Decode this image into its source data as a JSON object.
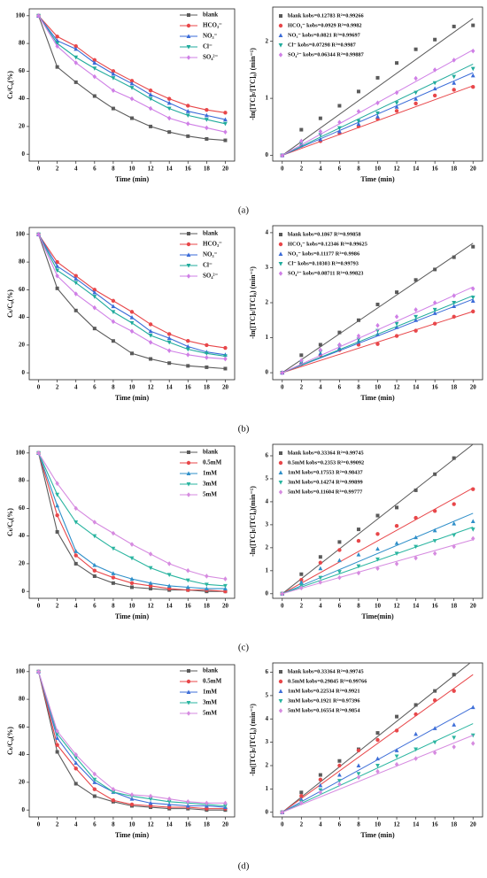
{
  "panel_labels": [
    "(a)",
    "(b)",
    "(c)",
    "(d)"
  ],
  "chart_data": [
    {
      "type": "line",
      "xlabel": "Time (min)",
      "ylabel": "Cₜ/C₀(%)",
      "x": [
        0,
        2,
        4,
        6,
        8,
        10,
        12,
        14,
        16,
        18,
        20
      ],
      "xlim": [
        -1,
        21
      ],
      "ylim": [
        -5,
        105
      ],
      "xticks": [
        0,
        2,
        4,
        6,
        8,
        10,
        12,
        14,
        16,
        18,
        20
      ],
      "yticks": [
        0,
        20,
        40,
        60,
        80,
        100
      ],
      "series": [
        {
          "name": "blank",
          "color": "#5a5a5a",
          "marker": "square",
          "values": [
            100,
            63,
            52,
            42,
            33,
            26,
            20,
            16,
            13,
            11,
            10
          ]
        },
        {
          "name": "HCO₃⁻",
          "color": "#e8474a",
          "marker": "circle",
          "values": [
            100,
            85,
            78,
            68,
            60,
            53,
            46,
            40,
            35,
            32,
            30
          ]
        },
        {
          "name": "NO₃⁻",
          "color": "#3a6bd8",
          "marker": "triangle",
          "values": [
            100,
            82,
            76,
            66,
            58,
            51,
            43,
            37,
            31,
            28,
            25
          ]
        },
        {
          "name": "Cl⁻",
          "color": "#20ab9c",
          "marker": "down",
          "values": [
            100,
            80,
            70,
            62,
            55,
            48,
            40,
            33,
            28,
            25,
            22
          ]
        },
        {
          "name": "SO₄²⁻",
          "color": "#cf7fe6",
          "marker": "diamond",
          "values": [
            100,
            78,
            66,
            56,
            46,
            40,
            33,
            26,
            22,
            19,
            16
          ]
        }
      ]
    },
    {
      "type": "scatter",
      "xlabel": "Time (min)",
      "ylabel": "-ln([TC]ₜ/[TC]₀) (min⁻¹)",
      "x": [
        0,
        2,
        4,
        6,
        8,
        10,
        12,
        14,
        16,
        18,
        20
      ],
      "xlim": [
        -1,
        21
      ],
      "ylim": [
        -0.1,
        2.6
      ],
      "xticks": [
        0,
        2,
        4,
        6,
        8,
        10,
        12,
        14,
        16,
        18,
        20
      ],
      "yticks": [
        0,
        1,
        2
      ],
      "series": [
        {
          "name": "blank   kobs=0.12783 R²=0.99266",
          "color": "#5a5a5a",
          "marker": "square",
          "values": [
            0,
            0.45,
            0.65,
            0.87,
            1.12,
            1.36,
            1.62,
            1.86,
            2.03,
            2.26,
            2.28
          ],
          "fit": [
            0,
            2.4
          ]
        },
        {
          "name": "HCO₃⁻   kobs=0.0929 R²=0.9982",
          "color": "#e8474a",
          "marker": "circle",
          "values": [
            0,
            0.17,
            0.25,
            0.39,
            0.51,
            0.64,
            0.78,
            0.91,
            1.05,
            1.15,
            1.2
          ],
          "fit": [
            0,
            1.22
          ]
        },
        {
          "name": "NO₃⁻   kobs=0.0821 R²=0.99697",
          "color": "#3a6bd8",
          "marker": "triangle",
          "values": [
            0,
            0.2,
            0.28,
            0.42,
            0.55,
            0.68,
            0.85,
            0.99,
            1.17,
            1.27,
            1.4
          ],
          "fit": [
            0,
            1.45
          ]
        },
        {
          "name": "Cl⁻   kobs=0.07298 R²=0.9987",
          "color": "#20ab9c",
          "marker": "down",
          "values": [
            0,
            0.22,
            0.36,
            0.48,
            0.6,
            0.74,
            0.92,
            1.1,
            1.27,
            1.38,
            1.52
          ],
          "fit": [
            0,
            1.6
          ]
        },
        {
          "name": "SO₄²⁻   kobs=0.06344 R²=0.99887",
          "color": "#cf7fe6",
          "marker": "diamond",
          "values": [
            0,
            0.25,
            0.42,
            0.58,
            0.77,
            0.92,
            1.1,
            1.35,
            1.5,
            1.67,
            1.83
          ],
          "fit": [
            0,
            1.85
          ]
        }
      ]
    },
    {
      "type": "line",
      "xlabel": "Time (min)",
      "ylabel": "Cₜ/C₀(%)",
      "x": [
        0,
        2,
        4,
        6,
        8,
        10,
        12,
        14,
        16,
        18,
        20
      ],
      "xlim": [
        -1,
        21
      ],
      "ylim": [
        -5,
        105
      ],
      "xticks": [
        0,
        2,
        4,
        6,
        8,
        10,
        12,
        14,
        16,
        18,
        20
      ],
      "yticks": [
        0,
        20,
        40,
        60,
        80,
        100
      ],
      "series": [
        {
          "name": "blank",
          "color": "#5a5a5a",
          "marker": "square",
          "values": [
            100,
            61,
            45,
            32,
            23,
            14,
            10,
            7,
            5,
            4,
            3
          ]
        },
        {
          "name": "HCO₃⁻",
          "color": "#e8474a",
          "marker": "circle",
          "values": [
            100,
            80,
            70,
            60,
            52,
            44,
            35,
            28,
            23,
            20,
            18
          ]
        },
        {
          "name": "NO₃⁻",
          "color": "#3a6bd8",
          "marker": "triangle",
          "values": [
            100,
            77,
            68,
            58,
            48,
            40,
            30,
            25,
            19,
            15,
            13
          ]
        },
        {
          "name": "Cl⁻",
          "color": "#20ab9c",
          "marker": "down",
          "values": [
            100,
            74,
            65,
            55,
            44,
            36,
            27,
            22,
            17,
            14,
            12
          ]
        },
        {
          "name": "SO₄²⁻",
          "color": "#cf7fe6",
          "marker": "diamond",
          "values": [
            100,
            70,
            57,
            47,
            37,
            30,
            22,
            16,
            13,
            11,
            10
          ]
        }
      ]
    },
    {
      "type": "scatter",
      "xlabel": "Time (min)",
      "ylabel": "-ln([TC]ₜ/[TC]₀) (min⁻¹)",
      "x": [
        0,
        2,
        4,
        6,
        8,
        10,
        12,
        14,
        16,
        18,
        20
      ],
      "xlim": [
        -1,
        21
      ],
      "ylim": [
        -0.2,
        4.2
      ],
      "xticks": [
        0,
        2,
        4,
        6,
        8,
        10,
        12,
        14,
        16,
        18,
        20
      ],
      "yticks": [
        0,
        1,
        2,
        3,
        4
      ],
      "series": [
        {
          "name": "blank   kobs=0.1867   R²=0.99858",
          "color": "#5a5a5a",
          "marker": "square",
          "values": [
            0,
            0.5,
            0.8,
            1.15,
            1.5,
            1.95,
            2.3,
            2.65,
            2.95,
            3.3,
            3.6
          ],
          "fit": [
            0,
            3.7
          ]
        },
        {
          "name": "HCO₃⁻   kobs=0.12346  R²=0.99625",
          "color": "#e8474a",
          "marker": "circle",
          "values": [
            0,
            0.25,
            0.5,
            0.65,
            0.8,
            0.82,
            1.05,
            1.2,
            1.4,
            1.6,
            1.75
          ],
          "fit": [
            0,
            1.75
          ]
        },
        {
          "name": "NO₃⁻   kobs=0.11177  R²=0.9986",
          "color": "#3a6bd8",
          "marker": "triangle",
          "values": [
            0,
            0.3,
            0.55,
            0.7,
            0.9,
            1.1,
            1.3,
            1.5,
            1.7,
            1.9,
            2.05
          ],
          "fit": [
            0,
            2.1
          ]
        },
        {
          "name": "Cl⁻   kobs=0.10303  R²=0.99793",
          "color": "#20ab9c",
          "marker": "down",
          "values": [
            0,
            0.3,
            0.6,
            0.75,
            0.95,
            1.2,
            1.4,
            1.6,
            1.8,
            2.0,
            2.15
          ],
          "fit": [
            0,
            2.2
          ]
        },
        {
          "name": "SO₄²⁻   kobs=0.08711  R²=0.99823",
          "color": "#cf7fe6",
          "marker": "diamond",
          "values": [
            0,
            0.35,
            0.65,
            0.8,
            1.05,
            1.35,
            1.6,
            1.8,
            2.0,
            2.2,
            2.4
          ],
          "fit": [
            0,
            2.45
          ]
        }
      ]
    },
    {
      "type": "line",
      "xlabel": "Time (min)",
      "ylabel": "Cₜ/C₀(%)",
      "x": [
        0,
        2,
        4,
        6,
        8,
        10,
        12,
        14,
        16,
        18,
        20
      ],
      "xlim": [
        -1,
        21
      ],
      "ylim": [
        -5,
        105
      ],
      "xticks": [
        0,
        2,
        4,
        6,
        8,
        10,
        12,
        14,
        16,
        18,
        20
      ],
      "yticks": [
        0,
        20,
        40,
        60,
        80,
        100
      ],
      "series": [
        {
          "name": "blank",
          "color": "#5a5a5a",
          "marker": "square",
          "values": [
            100,
            43,
            20,
            11,
            6,
            3,
            2,
            1,
            1,
            0,
            0
          ]
        },
        {
          "name": "0.5mM",
          "color": "#e8474a",
          "marker": "circle",
          "values": [
            100,
            55,
            26,
            15,
            10,
            6,
            4,
            2,
            1,
            1,
            0
          ]
        },
        {
          "name": "1mM",
          "color": "#2f8fc9",
          "marker": "triangle",
          "values": [
            100,
            62,
            29,
            19,
            13,
            9,
            6,
            4,
            3,
            2,
            2
          ]
        },
        {
          "name": "3mM",
          "color": "#2ab5a0",
          "marker": "down",
          "values": [
            100,
            70,
            50,
            40,
            31,
            24,
            17,
            12,
            8,
            5,
            4
          ]
        },
        {
          "name": "5mM",
          "color": "#d68be0",
          "marker": "diamond",
          "values": [
            100,
            78,
            60,
            50,
            42,
            34,
            27,
            20,
            15,
            11,
            9
          ]
        }
      ]
    },
    {
      "type": "scatter",
      "xlabel": "Time(min)",
      "ylabel": "-ln([TC]ₜ/[TC]₀)(min⁻¹)",
      "x": [
        0,
        2,
        4,
        6,
        8,
        10,
        12,
        14,
        16,
        18,
        20
      ],
      "xlim": [
        -1,
        21
      ],
      "ylim": [
        -0.2,
        6.5
      ],
      "xticks": [
        0,
        2,
        4,
        6,
        8,
        10,
        12,
        14,
        16,
        18,
        20
      ],
      "yticks": [
        0,
        1,
        2,
        3,
        4,
        5,
        6
      ],
      "series": [
        {
          "name": "blank   kobs=0.33364  R²=0.99745",
          "color": "#5a5a5a",
          "marker": "square",
          "values": [
            0,
            0.85,
            1.6,
            2.25,
            2.8,
            3.4,
            3.75,
            4.5,
            5.2,
            5.9,
            null
          ],
          "fit": [
            0,
            6.5
          ]
        },
        {
          "name": "0.5mM   kobs=0.2353   R²=0.99092",
          "color": "#e8474a",
          "marker": "circle",
          "values": [
            0,
            0.6,
            1.35,
            1.9,
            2.3,
            2.6,
            2.95,
            3.3,
            3.6,
            3.9,
            4.55
          ],
          "fit": [
            0,
            4.6
          ]
        },
        {
          "name": "1mM   kobs=0.17553  R²=0.98437",
          "color": "#2f8fc9",
          "marker": "triangle",
          "values": [
            0,
            0.5,
            1.1,
            1.45,
            1.7,
            1.95,
            2.2,
            2.45,
            2.75,
            3.05,
            3.15
          ],
          "fit": [
            0,
            3.5
          ]
        },
        {
          "name": "3mM   kobs=0.14274  R²=0.99899",
          "color": "#2ab5a0",
          "marker": "down",
          "values": [
            0,
            0.35,
            0.7,
            0.95,
            1.2,
            1.5,
            1.75,
            2.05,
            2.3,
            2.55,
            2.8
          ],
          "fit": [
            0,
            2.9
          ]
        },
        {
          "name": "5mM   kobs=0.11604  R²=0.99777",
          "color": "#d68be0",
          "marker": "diamond",
          "values": [
            0,
            0.25,
            0.5,
            0.7,
            0.9,
            1.1,
            1.3,
            1.55,
            1.75,
            2.05,
            2.4
          ],
          "fit": [
            0,
            2.35
          ]
        }
      ]
    },
    {
      "type": "line",
      "xlabel": "Time (min)",
      "ylabel": "Cₜ/C₀(%)",
      "x": [
        0,
        2,
        4,
        6,
        8,
        10,
        12,
        14,
        16,
        18,
        20
      ],
      "xlim": [
        -1,
        21
      ],
      "ylim": [
        -5,
        105
      ],
      "xticks": [
        0,
        2,
        4,
        6,
        8,
        10,
        12,
        14,
        16,
        18,
        20
      ],
      "yticks": [
        0,
        20,
        40,
        60,
        80,
        100
      ],
      "series": [
        {
          "name": "blank",
          "color": "#5a5a5a",
          "marker": "square",
          "values": [
            100,
            42,
            19,
            10,
            6,
            3,
            2,
            1,
            1,
            0,
            0
          ]
        },
        {
          "name": "0.5mM",
          "color": "#e8474a",
          "marker": "circle",
          "values": [
            100,
            47,
            30,
            15,
            7,
            4,
            3,
            2,
            2,
            1,
            1
          ]
        },
        {
          "name": "1mM",
          "color": "#3f6fd8",
          "marker": "triangle",
          "values": [
            100,
            52,
            34,
            20,
            13,
            8,
            5,
            4,
            3,
            3,
            2
          ]
        },
        {
          "name": "3mM",
          "color": "#2ab5a0",
          "marker": "down",
          "values": [
            100,
            55,
            38,
            22,
            13,
            10,
            8,
            6,
            5,
            4,
            3
          ]
        },
        {
          "name": "5mM",
          "color": "#d68be0",
          "marker": "diamond",
          "values": [
            100,
            57,
            40,
            26,
            15,
            11,
            10,
            8,
            6,
            5,
            5
          ]
        }
      ]
    },
    {
      "type": "scatter",
      "xlabel": "Time (min)",
      "ylabel": "-ln([TC]ₜ/[TC]₀) (min⁻¹)",
      "x": [
        0,
        2,
        4,
        6,
        8,
        10,
        12,
        14,
        16,
        18,
        20
      ],
      "xlim": [
        -1,
        21
      ],
      "ylim": [
        -0.2,
        6.4
      ],
      "xticks": [
        0,
        2,
        4,
        6,
        8,
        10,
        12,
        14,
        16,
        18,
        20
      ],
      "yticks": [
        0,
        1,
        2,
        3,
        4,
        5,
        6
      ],
      "series": [
        {
          "name": "blank   kobs=0.33364  R²=0.99745",
          "color": "#5a5a5a",
          "marker": "square",
          "values": [
            0,
            0.85,
            1.6,
            2.2,
            2.7,
            3.4,
            4.1,
            4.6,
            5.2,
            5.9,
            null
          ],
          "fit": [
            0,
            6.5
          ]
        },
        {
          "name": "0.5mM   kobs=0.29845  R²=0.99766",
          "color": "#e8474a",
          "marker": "circle",
          "values": [
            0,
            0.7,
            1.4,
            2.0,
            2.65,
            3.1,
            3.5,
            4.2,
            4.8,
            5.2,
            null
          ],
          "fit": [
            0,
            5.9
          ]
        },
        {
          "name": "1mM   kobs=0.22534  R²=0.9921",
          "color": "#3f6fd8",
          "marker": "triangle",
          "values": [
            0,
            0.55,
            1.15,
            1.6,
            2.0,
            2.3,
            2.65,
            3.35,
            3.6,
            3.75,
            4.5
          ],
          "fit": [
            0,
            4.5
          ]
        },
        {
          "name": "3mM   kobs=0.1921   R²=0.97396",
          "color": "#2ab5a0",
          "marker": "down",
          "values": [
            0,
            0.45,
            0.95,
            1.35,
            1.65,
            2.0,
            2.4,
            2.7,
            3.0,
            3.2,
            3.3
          ],
          "fit": [
            0,
            3.8
          ]
        },
        {
          "name": "5mM   kobs=0.16554  R²=0.9854",
          "color": "#d68be0",
          "marker": "diamond",
          "values": [
            0,
            0.4,
            0.85,
            1.2,
            1.5,
            1.75,
            2.05,
            2.3,
            2.55,
            2.8,
            2.95
          ],
          "fit": [
            0,
            3.3
          ]
        }
      ]
    }
  ]
}
